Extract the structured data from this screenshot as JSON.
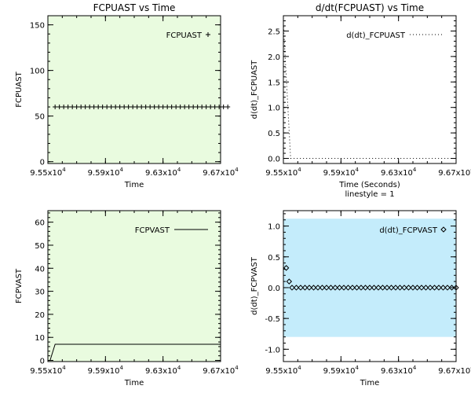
{
  "colors": {
    "panel_green": "#e9fbdf",
    "panel_blue": "#c4ecfb",
    "ink": "#000000"
  },
  "chart_data": [
    {
      "id": "p1",
      "type": "scatter",
      "marker": "plus",
      "title": "FCPUAST vs Time",
      "xlabel": "Time",
      "ylabel": "FCPUAST",
      "xlim": [
        95500,
        96700
      ],
      "ylim": [
        -2,
        160
      ],
      "background": "#e9fbdf",
      "background_y": [
        -2,
        160
      ],
      "x_ticks": [
        {
          "value": 95500,
          "mant": "9.55x10",
          "exp": "4"
        },
        {
          "value": 95900,
          "mant": "9.59x10",
          "exp": "4"
        },
        {
          "value": 96300,
          "mant": "9.63x10",
          "exp": "4"
        },
        {
          "value": 96700,
          "mant": "9.67x10",
          "exp": "4"
        }
      ],
      "y_ticks": [
        {
          "value": 0,
          "label": "0"
        },
        {
          "value": 50,
          "label": "50"
        },
        {
          "value": 100,
          "label": "100"
        },
        {
          "value": 150,
          "label": "150"
        }
      ],
      "legend": {
        "label": "FCPUAST",
        "position": "top-right"
      },
      "series": [
        {
          "x_start": 95550,
          "x_step": 30,
          "y": [
            60,
            60,
            60,
            60,
            60,
            60,
            60,
            60,
            60,
            60,
            60,
            60,
            60,
            60,
            60,
            60,
            60,
            60,
            60,
            60,
            60,
            60,
            60,
            60,
            60,
            60,
            60,
            60,
            60,
            60,
            60,
            60,
            60,
            60,
            60,
            60,
            60,
            60,
            60,
            60,
            60
          ]
        }
      ]
    },
    {
      "id": "p2",
      "type": "line",
      "line_style": "dotted",
      "title": "d/dt(FCPUAST) vs Time",
      "xlabel": "Time (Seconds)",
      "xlabel2": "linestyle = 1",
      "ylabel": "d(dt)_FCPUAST",
      "xlim": [
        95500,
        96700
      ],
      "ylim": [
        -0.1,
        2.8
      ],
      "background": null,
      "x_ticks": [
        {
          "value": 95500,
          "mant": "9.55x10",
          "exp": "4"
        },
        {
          "value": 95900,
          "mant": "9.59x10",
          "exp": "4"
        },
        {
          "value": 96300,
          "mant": "9.63x10",
          "exp": "4"
        },
        {
          "value": 96700,
          "mant": "9.67x10",
          "exp": "4"
        }
      ],
      "y_ticks": [
        {
          "value": 0,
          "label": "0.0"
        },
        {
          "value": 0.5,
          "label": "0.5"
        },
        {
          "value": 1.0,
          "label": "1.0"
        },
        {
          "value": 1.5,
          "label": "1.5"
        },
        {
          "value": 2.0,
          "label": "2.0"
        },
        {
          "value": 2.5,
          "label": "2.5"
        }
      ],
      "legend": {
        "label": "d(dt)_FCPUAST",
        "position": "top-right"
      },
      "series": [
        {
          "points": [
            [
              95500,
              2.65
            ],
            [
              95550,
              0.0
            ],
            [
              96700,
              0.0
            ]
          ]
        }
      ]
    },
    {
      "id": "p3",
      "type": "line",
      "line_style": "solid",
      "title": "",
      "xlabel": "Time",
      "ylabel": "FCPVAST",
      "xlim": [
        95500,
        96700
      ],
      "ylim": [
        -0.5,
        65
      ],
      "background": "#e9fbdf",
      "background_y": [
        -0.5,
        65
      ],
      "x_ticks": [
        {
          "value": 95500,
          "mant": "9.55x10",
          "exp": "4"
        },
        {
          "value": 95900,
          "mant": "9.59x10",
          "exp": "4"
        },
        {
          "value": 96300,
          "mant": "9.63x10",
          "exp": "4"
        },
        {
          "value": 96700,
          "mant": "9.67x10",
          "exp": "4"
        }
      ],
      "y_ticks": [
        {
          "value": 0,
          "label": "0"
        },
        {
          "value": 10,
          "label": "10"
        },
        {
          "value": 20,
          "label": "20"
        },
        {
          "value": 30,
          "label": "30"
        },
        {
          "value": 40,
          "label": "40"
        },
        {
          "value": 50,
          "label": "50"
        },
        {
          "value": 60,
          "label": "60"
        }
      ],
      "legend": {
        "label": "FCPVAST",
        "position": "top-right"
      },
      "series": [
        {
          "points": [
            [
              95500,
              0
            ],
            [
              95515,
              0
            ],
            [
              95550,
              7
            ],
            [
              96700,
              7
            ]
          ]
        }
      ]
    },
    {
      "id": "p4",
      "type": "scatter",
      "marker": "diamond",
      "title": "",
      "xlabel": "Time",
      "ylabel": "d(dt)_FCPVAST",
      "xlim": [
        95500,
        96700
      ],
      "ylim": [
        -1.2,
        1.25
      ],
      "background": "#c4ecfb",
      "background_y": [
        -0.8,
        1.12
      ],
      "x_ticks": [
        {
          "value": 95500,
          "mant": "9.55x10",
          "exp": "4"
        },
        {
          "value": 95900,
          "mant": "9.59x10",
          "exp": "4"
        },
        {
          "value": 96300,
          "mant": "9.63x10",
          "exp": "4"
        },
        {
          "value": 96700,
          "mant": "9.67x10",
          "exp": "4"
        }
      ],
      "y_ticks": [
        {
          "value": -1.0,
          "label": "-1.0"
        },
        {
          "value": -0.5,
          "label": "-0.5"
        },
        {
          "value": 0.0,
          "label": "0.0"
        },
        {
          "value": 0.5,
          "label": "0.5"
        },
        {
          "value": 1.0,
          "label": "1.0"
        }
      ],
      "legend": {
        "label": "d(dt)_FCPVAST",
        "position": "top-right"
      },
      "series": [
        {
          "points": [
            [
              95520,
              0.32
            ],
            [
              95540,
              0.1
            ],
            [
              95560,
              0.0
            ],
            [
              95590,
              0.0
            ],
            [
              95620,
              0.0
            ],
            [
              95650,
              0.0
            ],
            [
              95680,
              0.0
            ],
            [
              95710,
              0.0
            ],
            [
              95740,
              0.0
            ],
            [
              95770,
              0.0
            ],
            [
              95800,
              0.0
            ],
            [
              95830,
              0.0
            ],
            [
              95860,
              0.0
            ],
            [
              95890,
              0.0
            ],
            [
              95920,
              0.0
            ],
            [
              95950,
              0.0
            ],
            [
              95980,
              0.0
            ],
            [
              96010,
              0.0
            ],
            [
              96040,
              0.0
            ],
            [
              96070,
              0.0
            ],
            [
              96100,
              0.0
            ],
            [
              96130,
              0.0
            ],
            [
              96160,
              0.0
            ],
            [
              96190,
              0.0
            ],
            [
              96220,
              0.0
            ],
            [
              96250,
              0.0
            ],
            [
              96280,
              0.0
            ],
            [
              96310,
              0.0
            ],
            [
              96340,
              0.0
            ],
            [
              96370,
              0.0
            ],
            [
              96400,
              0.0
            ],
            [
              96430,
              0.0
            ],
            [
              96460,
              0.0
            ],
            [
              96490,
              0.0
            ],
            [
              96520,
              0.0
            ],
            [
              96550,
              0.0
            ],
            [
              96580,
              0.0
            ],
            [
              96610,
              0.0
            ],
            [
              96640,
              0.0
            ],
            [
              96670,
              0.0
            ],
            [
              96700,
              0.0
            ]
          ]
        }
      ]
    }
  ]
}
